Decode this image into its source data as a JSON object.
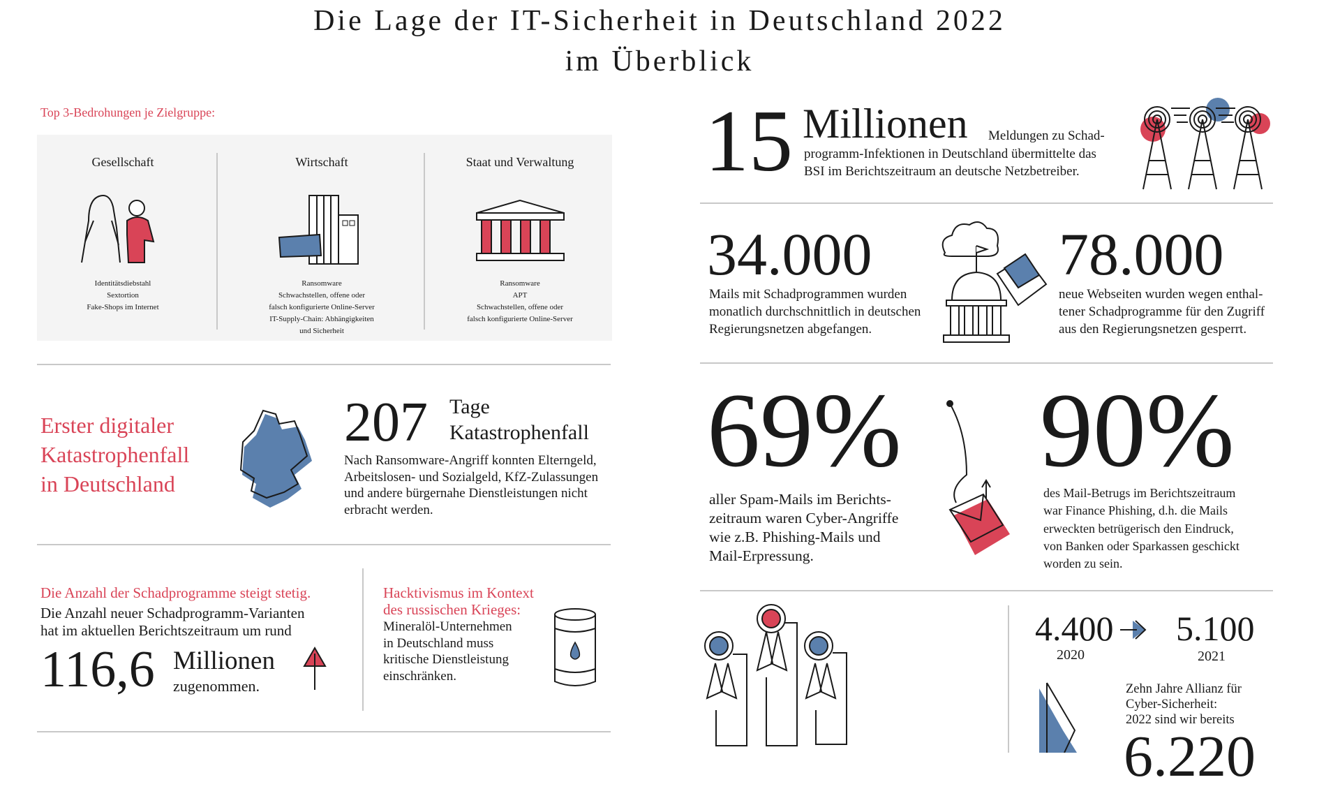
{
  "title": {
    "line1": "Die Lage der IT-Sicherheit in Deutschland 2022",
    "line2": "im Überblick"
  },
  "threats": {
    "heading": "Top 3-Bedrohungen je Zielgruppe:",
    "groups": [
      {
        "name": "Gesellschaft",
        "items": [
          "Identitätsdiebstahl",
          "Sextortion",
          "Fake-Shops im Internet"
        ]
      },
      {
        "name": "Wirtschaft",
        "items": [
          "Ransomware",
          "Schwachstellen, offene oder",
          "falsch konfigurierte Online-Server",
          "IT-Supply-Chain: Abhängigkeiten",
          "und Sicherheit"
        ]
      },
      {
        "name": "Staat und Verwaltung",
        "items": [
          "Ransomware",
          "APT",
          "Schwachstellen, offene oder",
          "falsch konfigurierte Online-Server"
        ]
      }
    ]
  },
  "disaster": {
    "heading": [
      "Erster digitaler",
      "Katastrophenfall",
      "in Deutschland"
    ],
    "number": "207",
    "unit1": "Tage",
    "unit2": "Katastrophenfall",
    "text": [
      "Nach Ransomware-Angriff konnten Elterngeld,",
      "Arbeitslosen- und Sozialgeld, KfZ-Zulassungen",
      "und andere bürgernahe Dienstleistungen nicht",
      "erbracht werden."
    ]
  },
  "malware": {
    "heading": "Die Anzahl der Schadprogramme steigt stetig.",
    "text": [
      "Die Anzahl neuer Schadprogramm-Varianten",
      "hat im aktuellen Berichtszeitraum um rund"
    ],
    "number": "116,6",
    "unit": "Millionen",
    "suffix": "zugenommen."
  },
  "hacktivism": {
    "heading": [
      "Hacktivismus im Kontext",
      "des russischen Krieges:"
    ],
    "text": [
      "Mineralöl-Unternehmen",
      "in Deutschland muss",
      "kritische Dienstleistung",
      "einschränken."
    ]
  },
  "reports": {
    "number": "15",
    "unit": "Millionen",
    "text": [
      "Meldungen zu Schad-",
      "programm-Infektionen in Deutschland übermittelte das",
      "BSI im Berichtszeitraum an deutsche Netzbetreiber."
    ]
  },
  "mails": {
    "number": "34.000",
    "text": [
      "Mails mit Schadprogrammen wurden",
      "monatlich durchschnittlich in deutschen",
      "Regierungsnetzen abgefangen."
    ]
  },
  "websites": {
    "number": "78.000",
    "text": [
      "neue Webseiten wurden wegen enthal-",
      "tener Schadprogramme für den Zugriff",
      "aus den Regierungsnetzen gesperrt."
    ]
  },
  "spam": {
    "number": "69%",
    "text": [
      "aller Spam-Mails im Berichts-",
      "zeitraum waren Cyber-Angriffe",
      "wie z.B. Phishing-Mails und",
      "Mail-Erpressung."
    ]
  },
  "phishing": {
    "number": "90%",
    "text": [
      "des Mail-Betrugs im Berichtszeitraum",
      "war Finance Phishing, d.h. die Mails",
      "erweckten  betrügerisch den Eindruck,",
      "von Banken oder Sparkassen geschickt",
      "worden zu sein."
    ]
  },
  "alliance": {
    "from_value": "4.400",
    "from_year": "2020",
    "to_value": "5.100",
    "to_year": "2021",
    "text": [
      "Zehn Jahre Allianz für",
      "Cyber-Sicherheit:",
      "2022 sind wir bereits"
    ],
    "number": "6.220"
  },
  "colors": {
    "red": "#d94457",
    "blue": "#5b80ad"
  }
}
